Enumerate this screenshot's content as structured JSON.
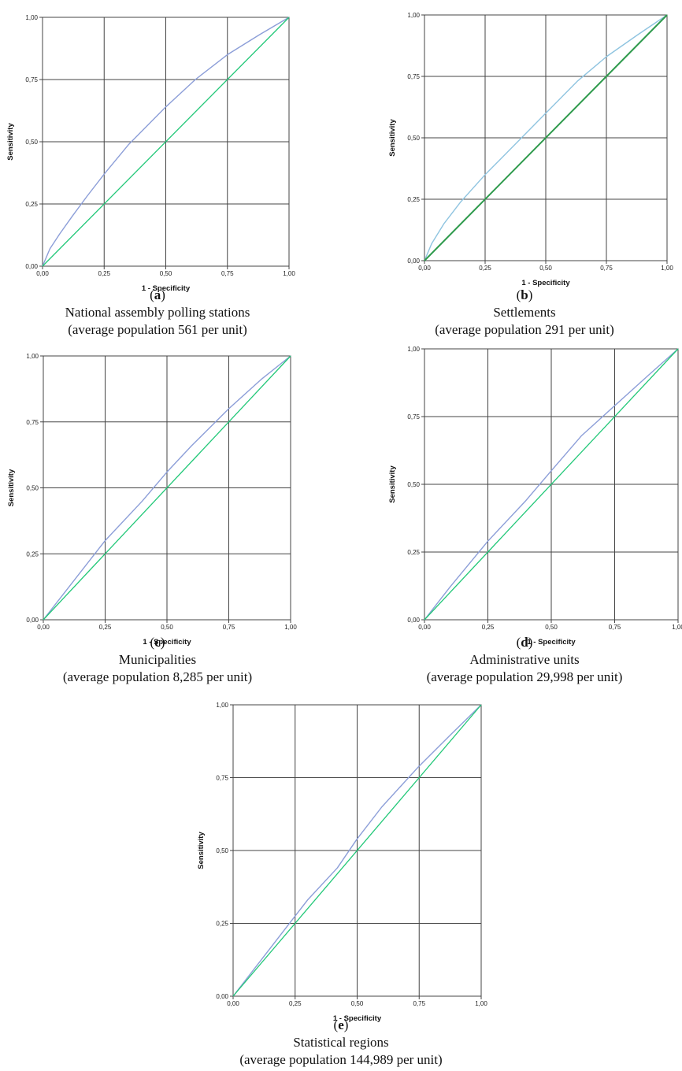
{
  "colors": {
    "roc_curve": "#8c9ed8",
    "roc_curve_b": "#8fc4e0",
    "reference_line": "#22c878",
    "reference_line_b": "#2e9a4c",
    "grid": "#444444"
  },
  "panels": [
    {
      "id": "a",
      "letter": "a",
      "title": "National assembly polling stations",
      "subtitle": "(average population 561 per unit)",
      "chart_data": {
        "type": "line",
        "xlabel": "1 - Specificity",
        "ylabel": "Sensitivity",
        "xlim": [
          0,
          1
        ],
        "ylim": [
          0,
          1
        ],
        "xticks": [
          "0,00",
          "0,25",
          "0,50",
          "0,75",
          "1,00"
        ],
        "yticks": [
          "0,00",
          "0,25",
          "0,50",
          "0,75",
          "1,00"
        ],
        "grid": true,
        "series": [
          {
            "role": "roc",
            "points": [
              [
                0,
                0
              ],
              [
                0.03,
                0.07
              ],
              [
                0.07,
                0.13
              ],
              [
                0.12,
                0.2
              ],
              [
                0.18,
                0.28
              ],
              [
                0.25,
                0.37
              ],
              [
                0.35,
                0.49
              ],
              [
                0.5,
                0.64
              ],
              [
                0.62,
                0.75
              ],
              [
                0.75,
                0.85
              ],
              [
                0.88,
                0.93
              ],
              [
                1,
                1
              ]
            ]
          },
          {
            "role": "reference",
            "points": [
              [
                0,
                0
              ],
              [
                1,
                1
              ]
            ]
          }
        ]
      }
    },
    {
      "id": "b",
      "letter": "b",
      "title": "Settlements",
      "subtitle": "(average population 291 per unit)",
      "chart_data": {
        "type": "line",
        "xlabel": "1 - Specificity",
        "ylabel": "Sensitivity",
        "xlim": [
          0,
          1
        ],
        "ylim": [
          0,
          1
        ],
        "xticks": [
          "0,00",
          "0,25",
          "0,50",
          "0,75",
          "1,00"
        ],
        "yticks": [
          "0,00",
          "0,25",
          "0,50",
          "0,75",
          "1,00"
        ],
        "grid": true,
        "series": [
          {
            "role": "roc",
            "points": [
              [
                0,
                0
              ],
              [
                0.03,
                0.07
              ],
              [
                0.08,
                0.15
              ],
              [
                0.15,
                0.24
              ],
              [
                0.25,
                0.35
              ],
              [
                0.37,
                0.47
              ],
              [
                0.5,
                0.6
              ],
              [
                0.63,
                0.73
              ],
              [
                0.75,
                0.83
              ],
              [
                0.88,
                0.92
              ],
              [
                1,
                1
              ]
            ]
          },
          {
            "role": "reference",
            "points": [
              [
                0,
                0
              ],
              [
                1,
                1
              ]
            ]
          }
        ]
      }
    },
    {
      "id": "c",
      "letter": "c",
      "title": "Municipalities",
      "subtitle": "(average population 8,285 per unit)",
      "chart_data": {
        "type": "line",
        "xlabel": "1 - Specificity",
        "ylabel": "Sensitivity",
        "xlim": [
          0,
          1
        ],
        "ylim": [
          0,
          1
        ],
        "xticks": [
          "0,00",
          "0,25",
          "0,50",
          "0,75",
          "1,00"
        ],
        "yticks": [
          "0,00",
          "0,25",
          "0,50",
          "0,75",
          "1,00"
        ],
        "grid": true,
        "series": [
          {
            "role": "roc",
            "points": [
              [
                0,
                0
              ],
              [
                0.1,
                0.12
              ],
              [
                0.25,
                0.3
              ],
              [
                0.4,
                0.45
              ],
              [
                0.5,
                0.56
              ],
              [
                0.6,
                0.66
              ],
              [
                0.75,
                0.8
              ],
              [
                0.88,
                0.91
              ],
              [
                1,
                1
              ]
            ]
          },
          {
            "role": "reference",
            "points": [
              [
                0,
                0
              ],
              [
                1,
                1
              ]
            ]
          }
        ]
      }
    },
    {
      "id": "d",
      "letter": "d",
      "title": "Administrative units",
      "subtitle": "(average population 29,998 per unit)",
      "chart_data": {
        "type": "line",
        "xlabel": "1 - Specificity",
        "ylabel": "Sensitivity",
        "xlim": [
          0,
          1
        ],
        "ylim": [
          0,
          1
        ],
        "xticks": [
          "0,00",
          "0,25",
          "0,50",
          "0,75",
          "1,00"
        ],
        "yticks": [
          "0,00",
          "0,25",
          "0,50",
          "0,75",
          "1,00"
        ],
        "grid": true,
        "series": [
          {
            "role": "roc",
            "points": [
              [
                0,
                0
              ],
              [
                0.1,
                0.12
              ],
              [
                0.25,
                0.29
              ],
              [
                0.4,
                0.44
              ],
              [
                0.5,
                0.55
              ],
              [
                0.62,
                0.68
              ],
              [
                0.75,
                0.79
              ],
              [
                0.88,
                0.9
              ],
              [
                1,
                1
              ]
            ]
          },
          {
            "role": "reference",
            "points": [
              [
                0,
                0
              ],
              [
                1,
                1
              ]
            ]
          }
        ]
      }
    },
    {
      "id": "e",
      "letter": "e",
      "title": "Statistical regions",
      "subtitle": "(average population 144,989 per unit)",
      "chart_data": {
        "type": "line",
        "xlabel": "1 - Specificity",
        "ylabel": "Sensitivity",
        "xlim": [
          0,
          1
        ],
        "ylim": [
          0,
          1
        ],
        "xticks": [
          "0,00",
          "0,25",
          "0,50",
          "0,75",
          "1,00"
        ],
        "yticks": [
          "0,00",
          "0,25",
          "0,50",
          "0,75",
          "1,00"
        ],
        "grid": true,
        "series": [
          {
            "role": "roc",
            "points": [
              [
                0,
                0
              ],
              [
                0.1,
                0.11
              ],
              [
                0.2,
                0.22
              ],
              [
                0.3,
                0.33
              ],
              [
                0.42,
                0.44
              ],
              [
                0.5,
                0.54
              ],
              [
                0.6,
                0.65
              ],
              [
                0.75,
                0.79
              ],
              [
                0.88,
                0.9
              ],
              [
                1,
                1
              ]
            ]
          },
          {
            "role": "reference",
            "points": [
              [
                0,
                0
              ],
              [
                1,
                1
              ]
            ]
          }
        ]
      }
    }
  ]
}
